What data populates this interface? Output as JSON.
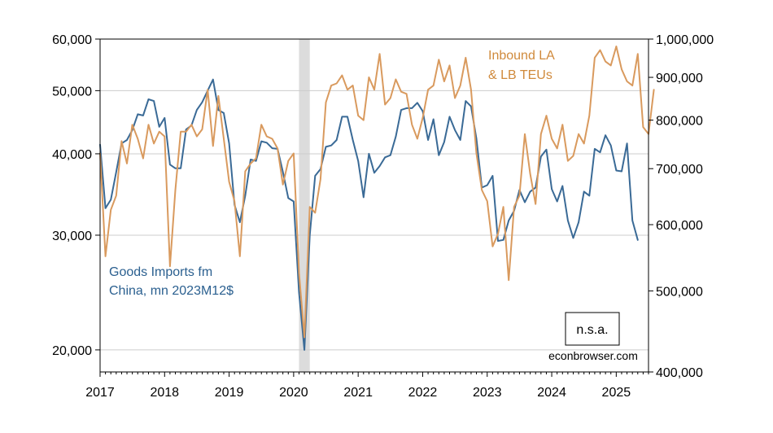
{
  "chart_data": {
    "type": "line",
    "title": "",
    "x_range": [
      2017.0,
      2025.5
    ],
    "x_ticks": [
      "2017",
      "2018",
      "2019",
      "2020",
      "2021",
      "2022",
      "2023",
      "2024",
      "2025"
    ],
    "y_left": {
      "scale": "log",
      "range": [
        18500,
        60000
      ],
      "ticks": [
        "20,000",
        "30,000",
        "40,000",
        "50,000",
        "60,000"
      ]
    },
    "y_right": {
      "scale": "log",
      "range": [
        400000,
        1000000
      ],
      "ticks": [
        "400,000",
        "500,000",
        "600,000",
        "700,000",
        "800,000",
        "900,000",
        "1,000,000"
      ]
    },
    "grid": true,
    "recession_shading": [
      {
        "start": 2020.083,
        "end": 2020.25,
        "color": "#dcdcdc"
      }
    ],
    "annotations": [
      {
        "text": "Goods Imports fm",
        "series": 0
      },
      {
        "text": "China, mn 2023M12$",
        "series": 0
      },
      {
        "text": "Inbound LA",
        "series": 1
      },
      {
        "text": "& LB TEUs",
        "series": 1
      }
    ],
    "nsa_label": "n.s.a.",
    "credit": "econbrowser.com",
    "series": [
      {
        "name": "Goods Imports fm China, mn 2023M12$",
        "axis": "left",
        "color": "#3a6a96",
        "start": 2017.0,
        "values": [
          41300,
          33000,
          34000,
          37500,
          41500,
          42000,
          43500,
          46000,
          45800,
          48500,
          48200,
          44000,
          45400,
          38500,
          38000,
          38000,
          43600,
          44200,
          46700,
          48000,
          50000,
          52000,
          46700,
          46200,
          41500,
          33400,
          31400,
          34500,
          39200,
          39000,
          41800,
          41600,
          40800,
          40700,
          37500,
          34200,
          33800,
          24500,
          20000,
          30000,
          37000,
          37900,
          41000,
          41200,
          42000,
          45600,
          45600,
          42000,
          39000,
          34300,
          40000,
          37400,
          38300,
          39500,
          39800,
          42500,
          46700,
          47000,
          47000,
          47900,
          46500,
          42000,
          45200,
          39800,
          41700,
          45600,
          43500,
          42000,
          48200,
          47300,
          42200,
          35500,
          35800,
          37000,
          29400,
          29500,
          31600,
          32700,
          35200,
          33700,
          35000,
          35500,
          39600,
          40600,
          35300,
          33800,
          35700,
          31600,
          29700,
          31400,
          35000,
          34500,
          40700,
          40200,
          42700,
          41200,
          37700,
          37600,
          41500,
          31600,
          29500
        ]
      },
      {
        "name": "Inbound LA & LB TEUs",
        "axis": "right",
        "color": "#d99a5e",
        "start": 2017.0,
        "values": [
          730000,
          550000,
          625000,
          650000,
          755000,
          710000,
          790000,
          760000,
          720000,
          790000,
          750000,
          775000,
          765000,
          535000,
          660000,
          775000,
          775000,
          790000,
          765000,
          780000,
          870000,
          745000,
          855000,
          760000,
          675000,
          640000,
          550000,
          695000,
          710000,
          720000,
          790000,
          765000,
          760000,
          740000,
          670000,
          715000,
          730000,
          525000,
          440000,
          630000,
          620000,
          680000,
          840000,
          880000,
          885000,
          905000,
          870000,
          880000,
          810000,
          800000,
          900000,
          870000,
          960000,
          835000,
          850000,
          895000,
          865000,
          860000,
          790000,
          760000,
          805000,
          870000,
          880000,
          945000,
          890000,
          930000,
          850000,
          880000,
          950000,
          870000,
          730000,
          660000,
          640000,
          565000,
          585000,
          630000,
          515000,
          630000,
          650000,
          770000,
          690000,
          635000,
          770000,
          810000,
          760000,
          740000,
          790000,
          715000,
          725000,
          770000,
          750000,
          810000,
          950000,
          970000,
          940000,
          930000,
          980000,
          920000,
          890000,
          880000,
          960000,
          785000,
          770000,
          870000
        ]
      }
    ]
  }
}
